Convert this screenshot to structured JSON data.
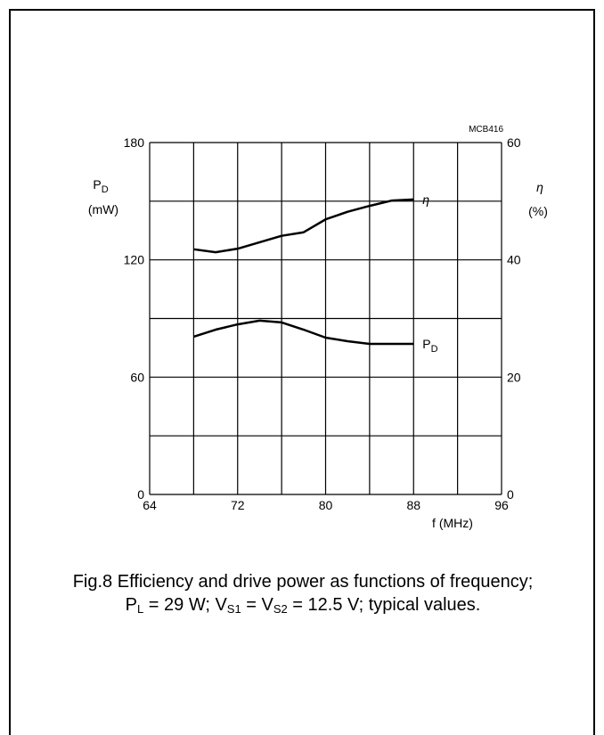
{
  "chart_data": {
    "type": "line",
    "code": "MCB416",
    "ylabel": {
      "main": "P",
      "sub": "D",
      "unit": "(mW)"
    },
    "y2label": {
      "main": "η",
      "unit": "(%)"
    },
    "xlabel": "f (MHz)",
    "x": [
      68,
      70,
      72,
      74,
      76,
      78,
      80,
      82,
      84,
      86,
      88
    ],
    "xlim": [
      64,
      96
    ],
    "xticks": [
      64,
      72,
      80,
      88,
      96
    ],
    "xgrid": [
      64,
      68,
      72,
      76,
      80,
      84,
      88,
      92,
      96
    ],
    "ylim": [
      0,
      180
    ],
    "yticks": [
      0,
      60,
      120,
      180
    ],
    "ygrid": [
      0,
      30,
      60,
      90,
      120,
      150,
      180
    ],
    "y2lim": [
      0,
      60
    ],
    "y2ticks": [
      0,
      20,
      40,
      60
    ],
    "series": [
      {
        "name": "η",
        "color": "#000000",
        "axis": "y2",
        "values": [
          41.8,
          41.3,
          41.9,
          43.0,
          44.1,
          44.7,
          46.9,
          48.2,
          49.2,
          50.1,
          50.3
        ]
      },
      {
        "name": "P",
        "name_sub": "D",
        "color": "#000000",
        "axis": "y",
        "values": [
          80.7,
          84.3,
          87.0,
          88.9,
          88.0,
          84.3,
          80.2,
          78.4,
          77.0,
          77.0,
          77.0
        ]
      }
    ],
    "caption": [
      {
        "text": "Fig.8  Efficiency and drive power as functions of frequency; P"
      },
      {
        "sub": "L"
      },
      {
        "text": " = 29 W; V"
      },
      {
        "sub": "S1"
      },
      {
        "text": " = V"
      },
      {
        "sub": "S2"
      },
      {
        "text": " = 12.5 V; typical values."
      }
    ]
  }
}
